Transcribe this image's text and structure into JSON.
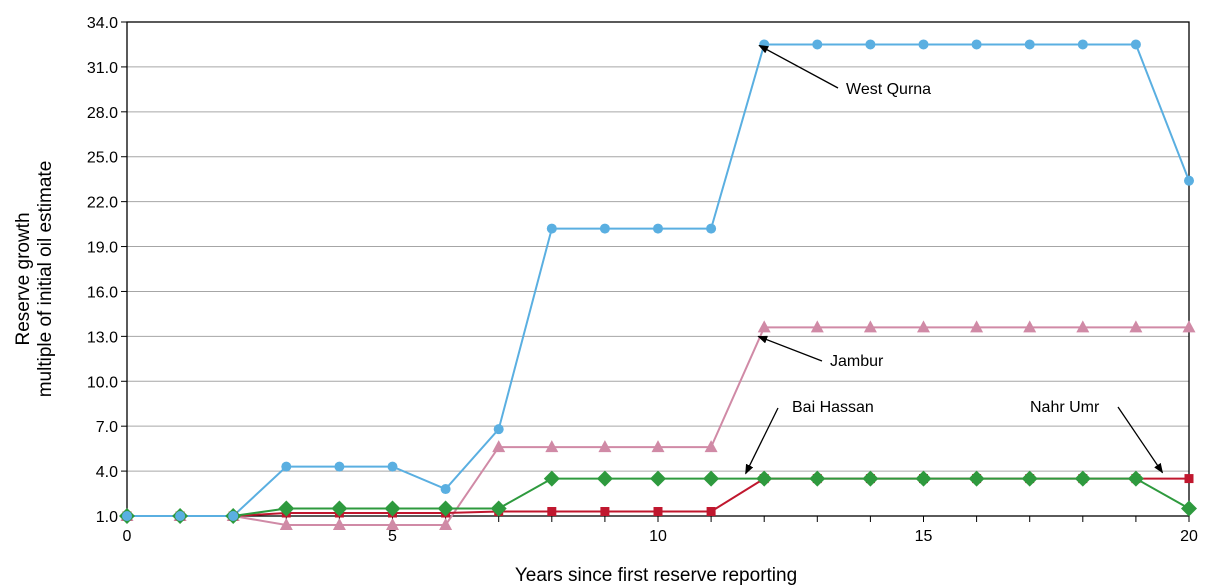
{
  "chart_data": {
    "type": "line",
    "xlabel": "Years since first reserve reporting",
    "ylabel": [
      "Reserve growth",
      "multiple of initial oil estimate"
    ],
    "x": [
      0,
      1,
      2,
      3,
      4,
      5,
      6,
      7,
      8,
      9,
      10,
      11,
      12,
      13,
      14,
      15,
      16,
      17,
      18,
      19,
      20
    ],
    "xlim": [
      0,
      20
    ],
    "ylim": [
      1.0,
      34.0
    ],
    "x_ticks": [
      "0",
      "5",
      "10",
      "15",
      "20"
    ],
    "y_ticks": [
      "1.0",
      "4.0",
      "7.0",
      "10.0",
      "13.0",
      "16.0",
      "19.0",
      "22.0",
      "25.0",
      "28.0",
      "31.0",
      "34.0"
    ],
    "grid": true,
    "series": [
      {
        "name": "West Qurna",
        "color": "#5aafe1",
        "marker": "circle",
        "values": [
          1.0,
          1.0,
          1.0,
          4.3,
          4.3,
          4.3,
          2.8,
          6.8,
          20.2,
          20.2,
          20.2,
          20.2,
          32.5,
          32.5,
          32.5,
          32.5,
          32.5,
          32.5,
          32.5,
          32.5,
          23.4
        ]
      },
      {
        "name": "Jambur",
        "color": "#d08aa6",
        "marker": "triangle",
        "values": [
          1.0,
          1.0,
          1.0,
          0.4,
          0.4,
          0.4,
          0.4,
          5.6,
          5.6,
          5.6,
          5.6,
          5.6,
          13.6,
          13.6,
          13.6,
          13.6,
          13.6,
          13.6,
          13.6,
          13.6,
          13.6
        ]
      },
      {
        "name": "Bai Hassan",
        "color": "#2e9a3e",
        "marker": "diamond",
        "values": [
          1.0,
          1.0,
          1.0,
          1.5,
          1.5,
          1.5,
          1.5,
          1.5,
          3.5,
          3.5,
          3.5,
          3.5,
          3.5,
          3.5,
          3.5,
          3.5,
          3.5,
          3.5,
          3.5,
          3.5,
          1.5
        ]
      },
      {
        "name": "Nahr Umr",
        "color": "#c0172e",
        "marker": "square",
        "values": [
          1.0,
          1.0,
          1.0,
          1.2,
          1.2,
          1.2,
          1.2,
          1.3,
          1.3,
          1.3,
          1.3,
          1.3,
          3.5,
          3.5,
          3.5,
          3.5,
          3.5,
          3.5,
          3.5,
          3.5,
          3.5
        ]
      }
    ],
    "annotations": [
      {
        "label": "West Qurna",
        "series": "West Qurna"
      },
      {
        "label": "Jambur",
        "series": "Jambur"
      },
      {
        "label": "Bai Hassan",
        "series": "Bai Hassan"
      },
      {
        "label": "Nahr Umr",
        "series": "Nahr Umr"
      }
    ]
  }
}
